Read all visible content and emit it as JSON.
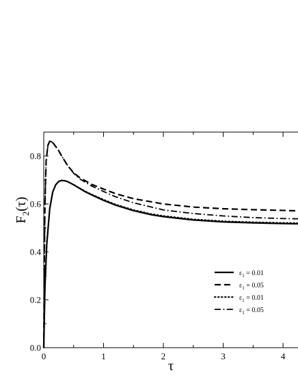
{
  "chart_data": {
    "type": "line",
    "xlabel": "τ",
    "ylabel": "F",
    "ylabel_sub": "2",
    "ylabel_suffix": "(τ)",
    "xlim": [
      0,
      4.25
    ],
    "ylim": [
      0,
      0.9
    ],
    "x_ticks": [
      {
        "value": 0,
        "label": "0"
      },
      {
        "value": 1,
        "label": "1"
      },
      {
        "value": 2,
        "label": "2"
      },
      {
        "value": 3,
        "label": "3"
      },
      {
        "value": 4,
        "label": "4"
      }
    ],
    "y_ticks": [
      {
        "value": 0.0,
        "label": "0.0"
      },
      {
        "value": 0.2,
        "label": "0.2"
      },
      {
        "value": 0.4,
        "label": "0.4"
      },
      {
        "value": 0.6,
        "label": "0.6"
      },
      {
        "value": 0.8,
        "label": "0.8"
      }
    ],
    "grid": false,
    "legend_position": "right",
    "series": [
      {
        "legend_symbol": "ε",
        "legend_sub": "1",
        "legend_value": " = 0.01",
        "style": "solid",
        "x": [
          0,
          0.02,
          0.05,
          0.1,
          0.15,
          0.2,
          0.25,
          0.3,
          0.35,
          0.4,
          0.5,
          0.6,
          0.7,
          0.8,
          1.0,
          1.2,
          1.5,
          1.8,
          2.0,
          2.5,
          3.0,
          3.5,
          4.0,
          4.25
        ],
        "y": [
          0,
          0.25,
          0.43,
          0.58,
          0.65,
          0.68,
          0.694,
          0.698,
          0.697,
          0.693,
          0.68,
          0.665,
          0.65,
          0.638,
          0.615,
          0.595,
          0.572,
          0.555,
          0.547,
          0.533,
          0.525,
          0.521,
          0.518,
          0.517
        ]
      },
      {
        "legend_symbol": "ε",
        "legend_sub": "1",
        "legend_value": " = 0.05",
        "style": "dashed",
        "x": [
          0,
          0.01,
          0.02,
          0.04,
          0.07,
          0.1,
          0.13,
          0.16,
          0.2,
          0.25,
          0.3,
          0.4,
          0.5,
          0.6,
          0.8,
          1.0,
          1.2,
          1.5,
          2.0,
          2.5,
          3.0,
          3.5,
          4.0,
          4.25
        ],
        "y": [
          0,
          0.35,
          0.6,
          0.78,
          0.845,
          0.862,
          0.86,
          0.853,
          0.84,
          0.822,
          0.8,
          0.76,
          0.73,
          0.71,
          0.682,
          0.662,
          0.643,
          0.622,
          0.6,
          0.587,
          0.58,
          0.576,
          0.573,
          0.571
        ]
      },
      {
        "legend_symbol": "ε",
        "legend_sub": "1",
        "legend_value": " = 0.01",
        "style": "dotted",
        "x": [
          0,
          0.02,
          0.05,
          0.1,
          0.15,
          0.2,
          0.25,
          0.3,
          0.35,
          0.4,
          0.5,
          0.6,
          0.7,
          0.8,
          1.0,
          1.2,
          1.5,
          1.8,
          2.0,
          2.5,
          3.0,
          3.5,
          4.0,
          4.25
        ],
        "y": [
          0,
          0.25,
          0.43,
          0.58,
          0.65,
          0.68,
          0.694,
          0.698,
          0.697,
          0.693,
          0.68,
          0.666,
          0.652,
          0.64,
          0.618,
          0.598,
          0.575,
          0.558,
          0.55,
          0.536,
          0.528,
          0.524,
          0.521,
          0.52
        ]
      },
      {
        "legend_symbol": "ε",
        "legend_sub": "1",
        "legend_value": " = 0.05",
        "style": "dashdot",
        "x": [
          0,
          0.01,
          0.02,
          0.04,
          0.07,
          0.1,
          0.13,
          0.16,
          0.2,
          0.25,
          0.3,
          0.4,
          0.5,
          0.6,
          0.8,
          1.0,
          1.2,
          1.5,
          2.0,
          2.5,
          3.0,
          3.5,
          4.0,
          4.25
        ],
        "y": [
          0,
          0.35,
          0.6,
          0.78,
          0.845,
          0.862,
          0.86,
          0.853,
          0.84,
          0.822,
          0.8,
          0.76,
          0.728,
          0.705,
          0.675,
          0.652,
          0.63,
          0.605,
          0.575,
          0.56,
          0.55,
          0.543,
          0.539,
          0.538
        ]
      }
    ]
  }
}
